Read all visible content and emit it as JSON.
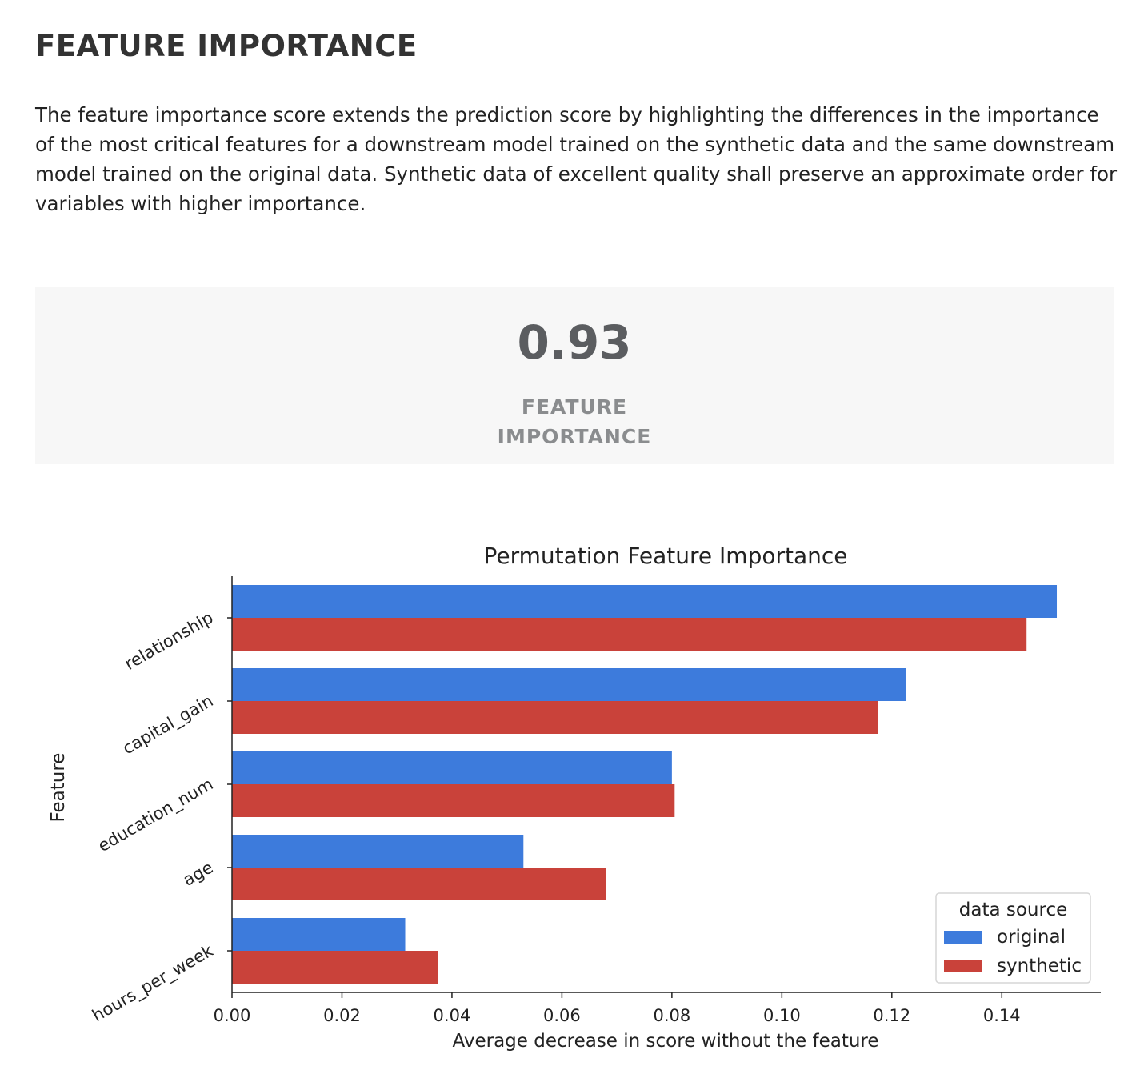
{
  "section": {
    "title": "FEATURE IMPORTANCE",
    "description": "The feature importance score extends the prediction score by highlighting the differences in the importance of the most critical features for a downstream model trained on the synthetic data and the same downstream model trained on the original data. Synthetic data of excellent quality shall preserve an approximate order for variables with higher importance."
  },
  "score_card": {
    "value": "0.93",
    "label": "FEATURE IMPORTANCE"
  },
  "chart_data": {
    "type": "bar",
    "orientation": "horizontal",
    "title": "Permutation Feature Importance",
    "xlabel": "Average decrease in score without the feature",
    "ylabel": "Feature",
    "categories": [
      "relationship",
      "capital_gain",
      "education_num",
      "age",
      "hours_per_week"
    ],
    "series": [
      {
        "name": "original",
        "color": "#3d7bdc",
        "values": [
          0.15,
          0.1225,
          0.08,
          0.053,
          0.0315
        ]
      },
      {
        "name": "synthetic",
        "color": "#c9423a",
        "values": [
          0.1445,
          0.1175,
          0.0805,
          0.068,
          0.0375
        ]
      }
    ],
    "xlim": [
      0,
      0.158
    ],
    "xticks": [
      0.0,
      0.02,
      0.04,
      0.06,
      0.08,
      0.1,
      0.12,
      0.14
    ],
    "xtick_labels": [
      "0.00",
      "0.02",
      "0.04",
      "0.06",
      "0.08",
      "0.10",
      "0.12",
      "0.14"
    ],
    "legend": {
      "title": "data source",
      "placement": "bottom-right"
    },
    "grid": false
  }
}
